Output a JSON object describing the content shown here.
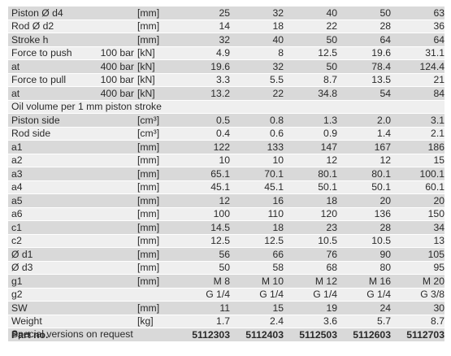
{
  "table": {
    "rows": [
      {
        "name": "Piston Ø d4",
        "cond": "",
        "unit": "[mm]",
        "values": [
          "25",
          "32",
          "40",
          "50",
          "63"
        ]
      },
      {
        "name": "Rod Ø d2",
        "cond": "",
        "unit": "[mm]",
        "values": [
          "14",
          "18",
          "22",
          "28",
          "36"
        ]
      },
      {
        "name": "Stroke h",
        "cond": "",
        "unit": "[mm]",
        "values": [
          "32",
          "40",
          "50",
          "64",
          "64"
        ]
      },
      {
        "name": "Force to push",
        "cond": "100 bar",
        "unit": "[kN]",
        "values": [
          "4.9",
          "8",
          "12.5",
          "19.6",
          "31.1"
        ]
      },
      {
        "name": "at",
        "cond": "400 bar",
        "unit": "[kN]",
        "values": [
          "19.6",
          "32",
          "50",
          "78.4",
          "124.4"
        ]
      },
      {
        "name": "Force to pull",
        "cond": "100 bar",
        "unit": "[kN]",
        "values": [
          "3.3",
          "5.5",
          "8.7",
          "13.5",
          "21"
        ]
      },
      {
        "name": "at",
        "cond": "400 bar",
        "unit": "[kN]",
        "values": [
          "13.2",
          "22",
          "34.8",
          "54",
          "84"
        ]
      },
      {
        "section": "Oil volume per 1 mm piston stroke"
      },
      {
        "name": "Piston side",
        "cond": "",
        "unit": "[cm³]",
        "values": [
          "0.5",
          "0.8",
          "1.3",
          "2.0",
          "3.1"
        ]
      },
      {
        "name": "Rod side",
        "cond": "",
        "unit": "[cm³]",
        "values": [
          "0.4",
          "0.6",
          "0.9",
          "1.4",
          "2.1"
        ]
      },
      {
        "name": "a1",
        "cond": "",
        "unit": "[mm]",
        "values": [
          "122",
          "133",
          "147",
          "167",
          "186"
        ]
      },
      {
        "name": "a2",
        "cond": "",
        "unit": "[mm]",
        "values": [
          "10",
          "10",
          "12",
          "12",
          "15"
        ]
      },
      {
        "name": "a3",
        "cond": "",
        "unit": "[mm]",
        "values": [
          "65.1",
          "70.1",
          "80.1",
          "80.1",
          "100.1"
        ]
      },
      {
        "name": "a4",
        "cond": "",
        "unit": "[mm]",
        "values": [
          "45.1",
          "45.1",
          "50.1",
          "50.1",
          "60.1"
        ]
      },
      {
        "name": "a5",
        "cond": "",
        "unit": "[mm]",
        "values": [
          "12",
          "16",
          "18",
          "20",
          "20"
        ]
      },
      {
        "name": "a6",
        "cond": "",
        "unit": "[mm]",
        "values": [
          "100",
          "110",
          "120",
          "136",
          "150"
        ]
      },
      {
        "name": "c1",
        "cond": "",
        "unit": "[mm]",
        "values": [
          "14.5",
          "18",
          "23",
          "28",
          "34"
        ]
      },
      {
        "name": "c2",
        "cond": "",
        "unit": "[mm]",
        "values": [
          "12.5",
          "12.5",
          "10.5",
          "10.5",
          "13"
        ]
      },
      {
        "name": "Ø d1",
        "cond": "",
        "unit": "[mm]",
        "values": [
          "56",
          "66",
          "76",
          "90",
          "105"
        ]
      },
      {
        "name": "Ø d3",
        "cond": "",
        "unit": "[mm]",
        "values": [
          "50",
          "58",
          "68",
          "80",
          "95"
        ]
      },
      {
        "name": "g1",
        "cond": "",
        "unit": "[mm]",
        "values": [
          "M 8",
          "M 10",
          "M 12",
          "M 16",
          "M 20"
        ]
      },
      {
        "name": "g2",
        "cond": "",
        "unit": "",
        "values": [
          "G 1/4",
          "G 1/4",
          "G 1/4",
          "G 1/4",
          "G 3/8"
        ]
      },
      {
        "name": "SW",
        "cond": "",
        "unit": "[mm]",
        "values": [
          "11",
          "15",
          "19",
          "24",
          "30"
        ]
      },
      {
        "name": "Weight",
        "cond": "",
        "unit": "[kg]",
        "values": [
          "1.7",
          "2.4",
          "3.6",
          "5.7",
          "8.7"
        ]
      },
      {
        "name": "Part no.",
        "cond": "",
        "unit": "",
        "values": [
          "5112303",
          "5112403",
          "5112503",
          "5112603",
          "5112703"
        ],
        "bold": true
      }
    ]
  },
  "footer": {
    "note": "Special versions on request"
  }
}
